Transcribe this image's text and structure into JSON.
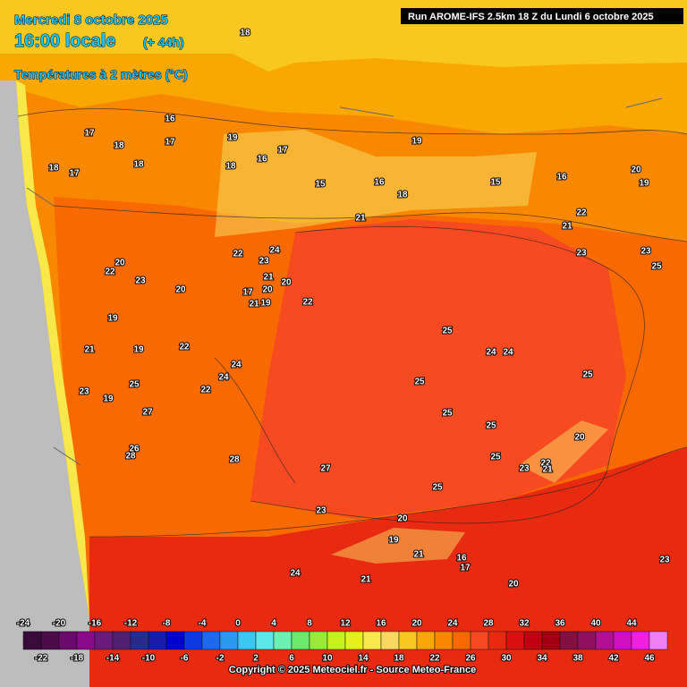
{
  "header": {
    "date": "Mercredi 8 octobre 2025",
    "time": "16:00 locale",
    "lead": "(+ 44h)",
    "variable": "Températures à 2 mètres (°C)",
    "run": "Run AROME-IFS 2.5km 18 Z du Lundi 6 octobre 2025"
  },
  "legend": {
    "colors": [
      "#3a0a3a",
      "#4b0b4b",
      "#6a0a6a",
      "#8a0a8a",
      "#6a1a7a",
      "#502070",
      "#2a2a8a",
      "#1a1aaa",
      "#0000d0",
      "#0a3ae0",
      "#1a6aee",
      "#2a9aee",
      "#3ac8f0",
      "#5ae8e8",
      "#6af0b0",
      "#6ae86a",
      "#9ae83a",
      "#caf01a",
      "#e8f01a",
      "#f8e84a",
      "#f8d860",
      "#f8c820",
      "#f8a800",
      "#f88800",
      "#f86a00",
      "#f84a20",
      "#e82a10",
      "#d81010",
      "#c00010",
      "#a00010",
      "#801040",
      "#901060",
      "#b01090",
      "#d010c0",
      "#f020e0",
      "#f080f0"
    ],
    "top_labels": [
      -24,
      -20,
      -16,
      -12,
      -8,
      -4,
      0,
      4,
      8,
      12,
      16,
      20,
      24,
      28,
      32,
      36,
      40,
      44
    ],
    "bottom_labels": [
      -22,
      -18,
      -14,
      -10,
      -6,
      -2,
      2,
      6,
      10,
      14,
      18,
      22,
      26,
      30,
      34,
      38,
      42,
      46
    ]
  },
  "map_labels": [
    18,
    17,
    18,
    16,
    17,
    18,
    18,
    17,
    19,
    18,
    16,
    17,
    19,
    15,
    16,
    18,
    15,
    16,
    20,
    19,
    22,
    21,
    21,
    23,
    23,
    25,
    24,
    22,
    23,
    20,
    22,
    23,
    20,
    21,
    20,
    19,
    22,
    17,
    20,
    19,
    21,
    19,
    25,
    24,
    24,
    25,
    25,
    25,
    25,
    25,
    20,
    22,
    21,
    23,
    24,
    22,
    23,
    24,
    22,
    21,
    19,
    25,
    27,
    26,
    28,
    28,
    27,
    25,
    23,
    20,
    19,
    21,
    16,
    17,
    21,
    20,
    24,
    23
  ],
  "copyright": "Copyright © 2025 Meteociel.fr - Source Meteo-France"
}
